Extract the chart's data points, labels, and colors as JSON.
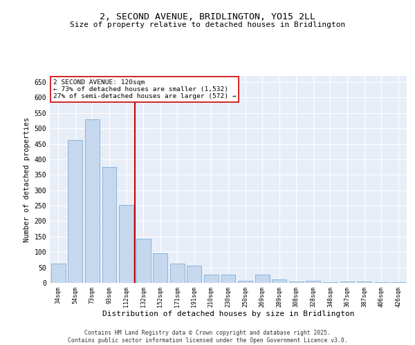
{
  "title": "2, SECOND AVENUE, BRIDLINGTON, YO15 2LL",
  "subtitle": "Size of property relative to detached houses in Bridlington",
  "xlabel": "Distribution of detached houses by size in Bridlington",
  "ylabel": "Number of detached properties",
  "categories": [
    "34sqm",
    "54sqm",
    "73sqm",
    "93sqm",
    "112sqm",
    "132sqm",
    "152sqm",
    "171sqm",
    "191sqm",
    "210sqm",
    "230sqm",
    "250sqm",
    "269sqm",
    "289sqm",
    "308sqm",
    "328sqm",
    "348sqm",
    "367sqm",
    "387sqm",
    "406sqm",
    "426sqm"
  ],
  "values": [
    63,
    463,
    530,
    375,
    253,
    143,
    95,
    63,
    55,
    27,
    26,
    7,
    27,
    11,
    5,
    7,
    2,
    5,
    5,
    3,
    3
  ],
  "bar_color": "#c5d8ee",
  "bar_edge_color": "#7aadd4",
  "vline_color": "#cc0000",
  "annotation_title": "2 SECOND AVENUE: 120sqm",
  "annotation_line1": "← 73% of detached houses are smaller (1,532)",
  "annotation_line2": "27% of semi-detached houses are larger (572) →",
  "annotation_box_edgecolor": "#cc0000",
  "ylim": [
    0,
    670
  ],
  "yticks": [
    0,
    50,
    100,
    150,
    200,
    250,
    300,
    350,
    400,
    450,
    500,
    550,
    600,
    650
  ],
  "background_color": "#e8eef8",
  "footer_line1": "Contains HM Land Registry data © Crown copyright and database right 2025.",
  "footer_line2": "Contains public sector information licensed under the Open Government Licence v3.0."
}
